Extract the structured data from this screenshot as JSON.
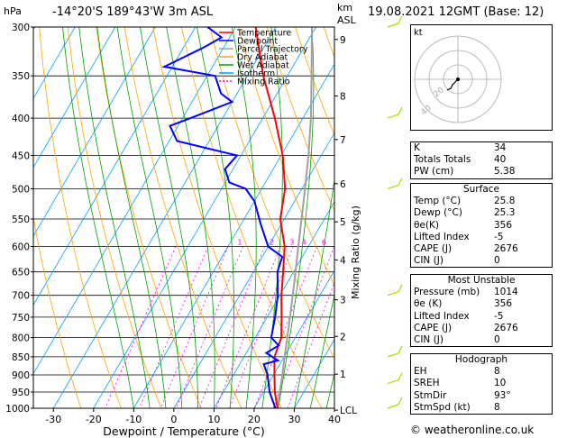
{
  "header": {
    "pressure_unit": "hPa",
    "location": "-14°20'S  189°43'W  3m ASL",
    "km_unit": "km",
    "asl_unit": "ASL",
    "datetime": "19.08.2021  12GMT  (Base: 12)"
  },
  "colors": {
    "temperature": "#ff0000",
    "dewpoint": "#0000ff",
    "parcel": "#a0a0a0",
    "dry_adiabat": "#ffa500",
    "wet_adiabat": "#00a000",
    "isotherm": "#00a0ff",
    "mixing_ratio": "#ff00ff",
    "wind_barb": "#a0e000"
  },
  "chart_data": {
    "type": "line",
    "xlabel": "Dewpoint / Temperature (°C)",
    "ylabel_right": "Mixing Ratio (g/kg)",
    "x_ticks": [
      "-30",
      "-20",
      "-10",
      "0",
      "10",
      "20",
      "30",
      "40"
    ],
    "x_tick_values": [
      -30,
      -20,
      -10,
      0,
      10,
      20,
      30,
      40
    ],
    "pressure_levels": [
      300,
      350,
      400,
      450,
      500,
      550,
      600,
      650,
      700,
      750,
      800,
      850,
      900,
      950,
      1000
    ],
    "pressure_labels": [
      "300",
      "350",
      "400",
      "450",
      "500",
      "550",
      "600",
      "650",
      "700",
      "750",
      "800",
      "850",
      "900",
      "950",
      "1000"
    ],
    "xlim": [
      -35,
      40
    ],
    "plim": [
      300,
      1000
    ],
    "skew_deg_per_log": 46,
    "km_ticks": [
      {
        "label": "9",
        "p": 312
      },
      {
        "label": "8",
        "p": 373
      },
      {
        "label": "7",
        "p": 428
      },
      {
        "label": "6",
        "p": 492
      },
      {
        "label": "5",
        "p": 555
      },
      {
        "label": "4",
        "p": 626
      },
      {
        "label": "3",
        "p": 710
      },
      {
        "label": "2",
        "p": 797
      },
      {
        "label": "1",
        "p": 898
      },
      {
        "label": "LCL",
        "p": 1006
      }
    ],
    "mixing_ratio_labels": [
      {
        "label": "1",
        "t": -7
      },
      {
        "label": "2",
        "t": 1
      },
      {
        "label": "3",
        "t": 6
      },
      {
        "label": "4",
        "t": 9
      },
      {
        "label": "6",
        "t": 14
      },
      {
        "label": "8",
        "t": 17
      },
      {
        "label": "10",
        "t": 20
      },
      {
        "label": "15",
        "t": 25
      },
      {
        "label": "20",
        "t": 28
      },
      {
        "label": "25",
        "t": 31
      }
    ],
    "mixing_ratio_values": [
      1,
      2,
      3,
      4,
      6,
      8,
      10,
      15,
      20,
      25
    ],
    "series": [
      {
        "name": "Temperature",
        "points": [
          [
            1000,
            25.8
          ],
          [
            950,
            22.8
          ],
          [
            900,
            20.2
          ],
          [
            850,
            17.6
          ],
          [
            800,
            16.5
          ],
          [
            750,
            13.6
          ],
          [
            700,
            10.4
          ],
          [
            650,
            7.4
          ],
          [
            600,
            4.1
          ],
          [
            550,
            -1.0
          ],
          [
            500,
            -4.2
          ],
          [
            450,
            -9.6
          ],
          [
            400,
            -17
          ],
          [
            350,
            -26
          ],
          [
            300,
            -35
          ]
        ]
      },
      {
        "name": "Dewpoint",
        "points": [
          [
            1000,
            25.3
          ],
          [
            950,
            21.5
          ],
          [
            900,
            18.5
          ],
          [
            870,
            16
          ],
          [
            860,
            19
          ],
          [
            840,
            15
          ],
          [
            820,
            17
          ],
          [
            800,
            14
          ],
          [
            750,
            12
          ],
          [
            700,
            9.5
          ],
          [
            650,
            6
          ],
          [
            620,
            5
          ],
          [
            600,
            0
          ],
          [
            560,
            -5
          ],
          [
            520,
            -10
          ],
          [
            500,
            -14
          ],
          [
            490,
            -19
          ],
          [
            470,
            -22
          ],
          [
            450,
            -21
          ],
          [
            430,
            -38
          ],
          [
            410,
            -42
          ],
          [
            400,
            -38
          ],
          [
            380,
            -30
          ],
          [
            370,
            -34
          ],
          [
            350,
            -38
          ],
          [
            340,
            -52
          ],
          [
            320,
            -45
          ],
          [
            310,
            -42
          ],
          [
            300,
            -47
          ]
        ]
      },
      {
        "name": "Parcel Trajectory",
        "points": [
          [
            1000,
            25.8
          ],
          [
            950,
            24.0
          ],
          [
            900,
            22.2
          ],
          [
            850,
            20.1
          ],
          [
            800,
            18.0
          ],
          [
            750,
            15.7
          ],
          [
            700,
            13.2
          ],
          [
            650,
            10.5
          ],
          [
            600,
            7.5
          ],
          [
            550,
            4.3
          ],
          [
            500,
            0.8
          ],
          [
            450,
            -3.2
          ],
          [
            400,
            -8.0
          ],
          [
            350,
            -14.0
          ],
          [
            300,
            -21.0
          ]
        ]
      }
    ],
    "legend": [
      "Temperature",
      "Dewpoint",
      "Parcel Trajectory",
      "Dry Adiabat",
      "Wet Adiabat",
      "Isotherm",
      "Mixing Ratio"
    ],
    "legend_placement": "top-left",
    "wind_barbs": [
      {
        "p": 1000,
        "speed_kt": 8
      },
      {
        "p": 925,
        "speed_kt": 10
      },
      {
        "p": 850,
        "speed_kt": 10
      },
      {
        "p": 700,
        "speed_kt": 15
      },
      {
        "p": 500,
        "speed_kt": 15
      },
      {
        "p": 400,
        "speed_kt": 15
      },
      {
        "p": 300,
        "speed_kt": 15
      }
    ]
  },
  "hodograph": {
    "label": "kt",
    "ring_labels": [
      "20",
      "40"
    ]
  },
  "indices": [
    {
      "key": "K",
      "value": "34"
    },
    {
      "key": "Totals Totals",
      "value": "40"
    },
    {
      "key": "PW (cm)",
      "value": "5.38"
    }
  ],
  "surface": {
    "title": "Surface",
    "rows": [
      {
        "key": "Temp (°C)",
        "value": "25.8"
      },
      {
        "key": "Dewp (°C)",
        "value": "25.3"
      },
      {
        "key": "θe(K)",
        "value": "356"
      },
      {
        "key": "Lifted Index",
        "value": "-5"
      },
      {
        "key": "CAPE (J)",
        "value": "2676"
      },
      {
        "key": "CIN (J)",
        "value": "0"
      }
    ]
  },
  "unstable": {
    "title": "Most Unstable",
    "rows": [
      {
        "key": "Pressure (mb)",
        "value": "1014"
      },
      {
        "key": "θe (K)",
        "value": "356"
      },
      {
        "key": "Lifted Index",
        "value": "-5"
      },
      {
        "key": "CAPE (J)",
        "value": "2676"
      },
      {
        "key": "CIN (J)",
        "value": "0"
      }
    ]
  },
  "hodo_table": {
    "title": "Hodograph",
    "rows": [
      {
        "key": "EH",
        "value": "8"
      },
      {
        "key": "SREH",
        "value": "10"
      },
      {
        "key": "StmDir",
        "value": "93°"
      },
      {
        "key": "StmSpd (kt)",
        "value": "8"
      }
    ]
  },
  "copyright": "© weatheronline.co.uk"
}
